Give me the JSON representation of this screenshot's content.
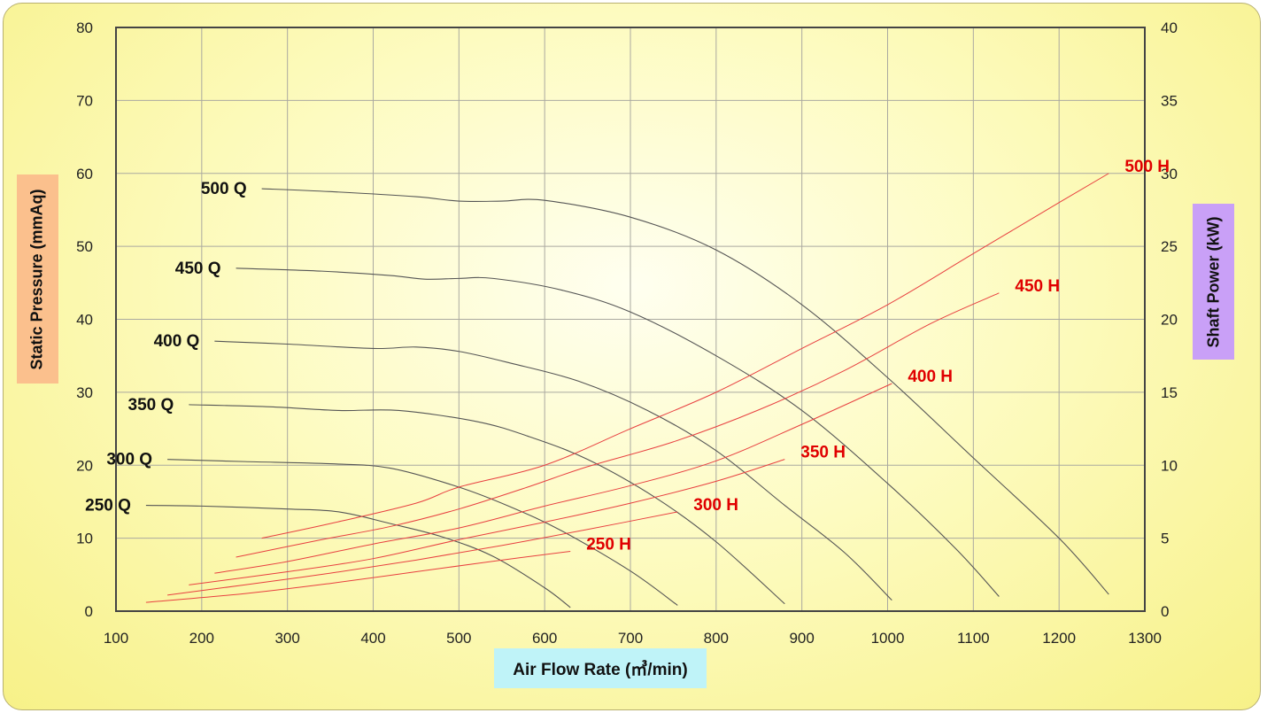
{
  "chart_data": {
    "type": "line",
    "xlabel": "Air Flow Rate (㎥/min)",
    "ylabel": "Static Pressure (mmAq)",
    "y2label": "Shaft Power (kW)",
    "xlim": [
      100,
      1300
    ],
    "ylim": [
      0,
      80
    ],
    "y2lim": [
      0,
      40
    ],
    "xticks": [
      "100",
      "200",
      "300",
      "400",
      "500",
      "600",
      "700",
      "800",
      "900",
      "1000",
      "1100",
      "1200",
      "1300"
    ],
    "yticks": [
      "0",
      "10",
      "20",
      "30",
      "40",
      "50",
      "60",
      "70",
      "80"
    ],
    "y2ticks": [
      "0",
      "5",
      "10",
      "15",
      "20",
      "25",
      "30",
      "35",
      "40"
    ],
    "grid": true,
    "pressure_color": "#555555",
    "power_color": "#e84040",
    "pressure_series": [
      {
        "name": "250 Q",
        "x": [
          135,
          200,
          300,
          360,
          420,
          480,
          540,
          600,
          630
        ],
        "y": [
          14.5,
          14.4,
          14.0,
          13.6,
          12.0,
          10.2,
          7.5,
          3.2,
          0.5
        ]
      },
      {
        "name": "300 Q",
        "x": [
          160,
          250,
          350,
          420,
          500,
          560,
          620,
          700,
          755
        ],
        "y": [
          20.8,
          20.5,
          20.2,
          19.6,
          17.0,
          14.3,
          11.0,
          5.5,
          0.8
        ]
      },
      {
        "name": "350 Q",
        "x": [
          185,
          280,
          360,
          430,
          520,
          580,
          650,
          730,
          800,
          880
        ],
        "y": [
          28.3,
          28.0,
          27.5,
          27.5,
          26.0,
          24.0,
          20.8,
          15.5,
          9.5,
          1.0
        ]
      },
      {
        "name": "400 Q",
        "x": [
          215,
          300,
          400,
          450,
          500,
          560,
          640,
          720,
          800,
          880,
          950,
          1005
        ],
        "y": [
          37.0,
          36.6,
          36.0,
          36.2,
          35.6,
          34.0,
          31.5,
          27.5,
          22.0,
          14.5,
          8.0,
          1.5
        ]
      },
      {
        "name": "450 Q",
        "x": [
          240,
          340,
          420,
          460,
          500,
          540,
          620,
          700,
          800,
          900,
          1000,
          1080,
          1130
        ],
        "y": [
          47.0,
          46.6,
          46.0,
          45.5,
          45.6,
          45.6,
          44.0,
          41.0,
          35.0,
          27.5,
          17.5,
          8.5,
          2.0
        ]
      },
      {
        "name": "500 Q",
        "x": [
          270,
          350,
          450,
          500,
          550,
          600,
          700,
          800,
          900,
          1000,
          1100,
          1200,
          1258
        ],
        "y": [
          57.9,
          57.5,
          56.8,
          56.2,
          56.2,
          56.3,
          54.0,
          49.5,
          42.0,
          32.0,
          21.0,
          10.0,
          2.3
        ]
      }
    ],
    "power_series": [
      {
        "name": "250 H",
        "x": [
          135,
          250,
          350,
          450,
          550,
          630
        ],
        "y": [
          0.6,
          1.2,
          1.9,
          2.7,
          3.5,
          4.1
        ]
      },
      {
        "name": "300 H",
        "x": [
          160,
          250,
          350,
          450,
          550,
          650,
          755
        ],
        "y": [
          1.1,
          1.8,
          2.6,
          3.5,
          4.5,
          5.6,
          6.8
        ]
      },
      {
        "name": "350 H",
        "x": [
          185,
          300,
          400,
          500,
          600,
          700,
          800,
          880
        ],
        "y": [
          1.8,
          2.7,
          3.6,
          4.9,
          6.1,
          7.4,
          8.9,
          10.4
        ]
      },
      {
        "name": "400 H",
        "x": [
          215,
          300,
          400,
          500,
          600,
          700,
          800,
          900,
          1005
        ],
        "y": [
          2.6,
          3.4,
          4.6,
          5.7,
          7.2,
          8.6,
          10.3,
          12.8,
          15.6
        ]
      },
      {
        "name": "450 H",
        "x": [
          240,
          340,
          420,
          500,
          580,
          650,
          750,
          850,
          950,
          1050,
          1130
        ],
        "y": [
          3.7,
          4.9,
          5.8,
          7.0,
          8.5,
          9.9,
          11.6,
          13.8,
          16.5,
          19.7,
          21.8
        ]
      },
      {
        "name": "500 H",
        "x": [
          270,
          350,
          450,
          500,
          600,
          700,
          800,
          900,
          1000,
          1100,
          1200,
          1258
        ],
        "y": [
          5.0,
          6.0,
          7.4,
          8.5,
          10.0,
          12.5,
          15.0,
          18.0,
          21.0,
          24.5,
          28.0,
          30.0
        ]
      }
    ]
  }
}
